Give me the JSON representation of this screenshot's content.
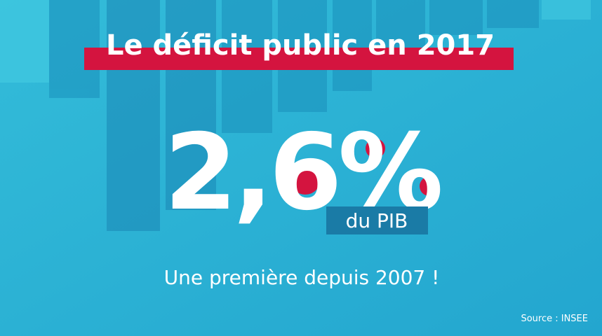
{
  "header": {
    "title": "Le déficit public en 2017"
  },
  "figure": {
    "value": "2,6%",
    "unit": "du PIB"
  },
  "tagline": "Une première depuis 2007 !",
  "source": "Source : INSEE"
}
